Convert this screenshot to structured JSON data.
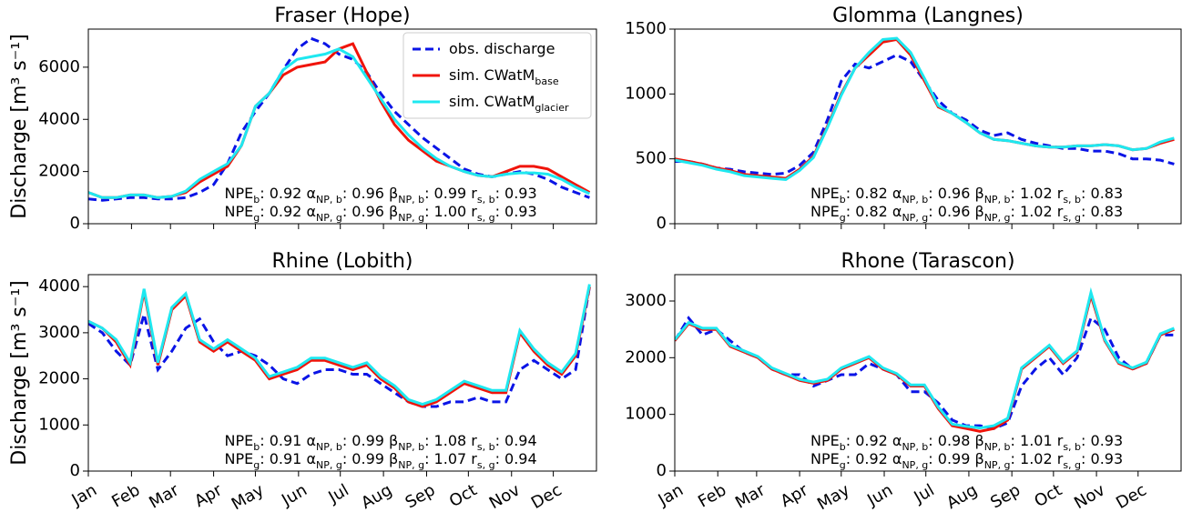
{
  "chart_data": [
    {
      "type": "line",
      "title": "Fraser (Hope)",
      "ylabel": "Discharge [m³ s⁻¹]",
      "x": [
        0,
        10,
        20,
        30,
        40,
        50,
        60,
        70,
        80,
        90,
        100,
        110,
        120,
        130,
        140,
        150,
        160,
        170,
        180,
        190,
        200,
        210,
        220,
        230,
        240,
        250,
        260,
        270,
        280,
        290,
        300,
        310,
        320,
        330,
        340,
        350,
        360
      ],
      "xlim": [
        0,
        365
      ],
      "xticks": [
        0,
        31,
        59,
        90,
        120,
        151,
        181,
        212,
        243,
        273,
        304,
        334
      ],
      "ylim": [
        0,
        7460
      ],
      "yticks": [
        0,
        2000,
        4000,
        6000
      ],
      "legend": "upper right",
      "series": [
        {
          "name": "obs. discharge",
          "color": "#0a14e6",
          "linestyle": "dashed",
          "values": [
            950,
            900,
            950,
            1000,
            1000,
            950,
            950,
            1000,
            1200,
            1500,
            2300,
            3500,
            4300,
            5000,
            5900,
            6700,
            7100,
            6900,
            6500,
            6300,
            5800,
            5000,
            4300,
            3800,
            3300,
            2900,
            2500,
            2100,
            1900,
            1800,
            1900,
            2000,
            1900,
            1700,
            1400,
            1200,
            1000
          ]
        },
        {
          "name": "sim. CWatM",
          "name_sub": "base",
          "color": "#f0140a",
          "linestyle": "solid",
          "values": [
            1200,
            1000,
            1000,
            1100,
            1100,
            1000,
            1050,
            1200,
            1600,
            1900,
            2200,
            3000,
            4500,
            5000,
            5700,
            6000,
            6100,
            6200,
            6700,
            6900,
            5800,
            4700,
            3800,
            3200,
            2800,
            2400,
            2200,
            2000,
            1850,
            1800,
            2000,
            2200,
            2200,
            2100,
            1800,
            1500,
            1200
          ]
        },
        {
          "name": "sim. CWatM",
          "name_sub": "glacier",
          "color": "#1ee8f0",
          "linestyle": "solid",
          "values": [
            1200,
            1000,
            1000,
            1100,
            1100,
            1000,
            1050,
            1250,
            1700,
            2000,
            2300,
            3000,
            4500,
            5000,
            5900,
            6300,
            6400,
            6500,
            6700,
            6400,
            5600,
            4800,
            4000,
            3400,
            2900,
            2500,
            2200,
            2000,
            1850,
            1800,
            1900,
            1950,
            1950,
            1900,
            1700,
            1400,
            1150
          ]
        }
      ],
      "annotations": [
        [
          {
            "base": "NPE",
            "sub": "b",
            "value": ": 0.92 "
          },
          {
            "base": "α",
            "sub": "NP, b",
            "value": ": 0.96 "
          },
          {
            "base": "β",
            "sub": "NP, b",
            "value": ": 0.99 "
          },
          {
            "base": "r",
            "sub": "s, b",
            "value": ": 0.93"
          }
        ],
        [
          {
            "base": "NPE",
            "sub": "g",
            "value": ": 0.92 "
          },
          {
            "base": "α",
            "sub": "NP, g",
            "value": ": 0.96 "
          },
          {
            "base": "β",
            "sub": "NP, g",
            "value": ": 1.00 "
          },
          {
            "base": "r",
            "sub": "s, g",
            "value": ": 0.93"
          }
        ]
      ]
    },
    {
      "type": "line",
      "title": "Glomma (Langnes)",
      "x": [
        0,
        10,
        20,
        30,
        40,
        50,
        60,
        70,
        80,
        90,
        100,
        110,
        120,
        130,
        140,
        150,
        160,
        170,
        180,
        190,
        200,
        210,
        220,
        230,
        240,
        250,
        260,
        270,
        280,
        290,
        300,
        310,
        320,
        330,
        340,
        350,
        360
      ],
      "xlim": [
        0,
        365
      ],
      "xticks": [
        0,
        31,
        59,
        90,
        120,
        151,
        181,
        212,
        243,
        273,
        304,
        334
      ],
      "ylim": [
        0,
        1500
      ],
      "yticks": [
        0,
        500,
        1000,
        1500
      ],
      "series": [
        {
          "name": "obs. discharge",
          "color": "#0a14e6",
          "linestyle": "dashed",
          "values": [
            480,
            480,
            460,
            430,
            420,
            400,
            390,
            380,
            390,
            450,
            550,
            800,
            1100,
            1230,
            1200,
            1250,
            1300,
            1250,
            1100,
            950,
            850,
            800,
            720,
            680,
            700,
            650,
            620,
            600,
            580,
            580,
            560,
            560,
            540,
            500,
            500,
            490,
            460
          ]
        },
        {
          "name": "sim. CWatM",
          "name_sub": "base",
          "color": "#f0140a",
          "linestyle": "solid",
          "values": [
            500,
            480,
            460,
            430,
            410,
            380,
            370,
            360,
            350,
            420,
            520,
            750,
            1000,
            1200,
            1300,
            1400,
            1420,
            1300,
            1100,
            900,
            850,
            780,
            700,
            650,
            640,
            620,
            600,
            590,
            590,
            600,
            600,
            610,
            600,
            570,
            580,
            620,
            650
          ]
        },
        {
          "name": "sim. CWatM",
          "name_sub": "glacier",
          "color": "#1ee8f0",
          "linestyle": "solid",
          "values": [
            490,
            470,
            450,
            420,
            400,
            370,
            360,
            350,
            340,
            410,
            510,
            740,
            990,
            1200,
            1320,
            1420,
            1430,
            1320,
            1120,
            910,
            850,
            780,
            700,
            650,
            640,
            620,
            600,
            590,
            590,
            600,
            600,
            610,
            600,
            570,
            580,
            630,
            660
          ]
        }
      ],
      "annotations": [
        [
          {
            "base": "NPE",
            "sub": "b",
            "value": ": 0.82 "
          },
          {
            "base": "α",
            "sub": "NP, b",
            "value": ": 0.96 "
          },
          {
            "base": "β",
            "sub": "NP, b",
            "value": ": 1.02 "
          },
          {
            "base": "r",
            "sub": "s, b",
            "value": ": 0.83"
          }
        ],
        [
          {
            "base": "NPE",
            "sub": "g",
            "value": ": 0.82 "
          },
          {
            "base": "α",
            "sub": "NP, g",
            "value": ": 0.96 "
          },
          {
            "base": "β",
            "sub": "NP, g",
            "value": ": 1.02 "
          },
          {
            "base": "r",
            "sub": "s, g",
            "value": ": 0.83"
          }
        ]
      ]
    },
    {
      "type": "line",
      "title": "Rhine (Lobith)",
      "ylabel": "Discharge [m³ s⁻¹]",
      "x": [
        0,
        10,
        20,
        30,
        40,
        50,
        60,
        70,
        80,
        90,
        100,
        110,
        120,
        130,
        140,
        150,
        160,
        170,
        180,
        190,
        200,
        210,
        220,
        230,
        240,
        250,
        260,
        270,
        280,
        290,
        300,
        310,
        320,
        330,
        340,
        350,
        360
      ],
      "xlim": [
        0,
        365
      ],
      "xticks": [
        {
          "value": 0,
          "label": "Jan"
        },
        {
          "value": 31,
          "label": "Feb"
        },
        {
          "value": 59,
          "label": "Mar"
        },
        {
          "value": 90,
          "label": "Apr"
        },
        {
          "value": 120,
          "label": "May"
        },
        {
          "value": 151,
          "label": "Jun"
        },
        {
          "value": 181,
          "label": "Jul"
        },
        {
          "value": 212,
          "label": "Aug"
        },
        {
          "value": 243,
          "label": "Sep"
        },
        {
          "value": 273,
          "label": "Oct"
        },
        {
          "value": 304,
          "label": "Nov"
        },
        {
          "value": 334,
          "label": "Dec"
        }
      ],
      "ylim": [
        0,
        4260
      ],
      "yticks": [
        0,
        1000,
        2000,
        3000,
        4000
      ],
      "series": [
        {
          "name": "obs. discharge",
          "color": "#0a14e6",
          "linestyle": "dashed",
          "values": [
            3200,
            3000,
            2600,
            2300,
            3400,
            2200,
            2600,
            3100,
            3300,
            2800,
            2500,
            2600,
            2500,
            2300,
            2000,
            1900,
            2100,
            2200,
            2200,
            2100,
            2100,
            1900,
            1700,
            1500,
            1400,
            1400,
            1500,
            1500,
            1600,
            1500,
            1500,
            2200,
            2400,
            2200,
            2000,
            2200,
            4000
          ]
        },
        {
          "name": "sim. CWatM",
          "name_sub": "base",
          "color": "#f0140a",
          "linestyle": "solid",
          "values": [
            3250,
            3100,
            2800,
            2300,
            3900,
            2300,
            3500,
            3800,
            2800,
            2600,
            2800,
            2600,
            2400,
            2000,
            2100,
            2200,
            2400,
            2400,
            2300,
            2200,
            2300,
            2000,
            1800,
            1500,
            1400,
            1500,
            1700,
            1900,
            1800,
            1700,
            1700,
            3000,
            2600,
            2300,
            2100,
            2500,
            4000
          ]
        },
        {
          "name": "sim. CWatM",
          "name_sub": "glacier",
          "color": "#1ee8f0",
          "linestyle": "solid",
          "values": [
            3250,
            3100,
            2850,
            2350,
            3950,
            2350,
            3550,
            3850,
            2850,
            2650,
            2850,
            2650,
            2450,
            2050,
            2150,
            2250,
            2450,
            2450,
            2350,
            2250,
            2350,
            2050,
            1850,
            1550,
            1450,
            1550,
            1750,
            1950,
            1850,
            1750,
            1750,
            3050,
            2650,
            2350,
            2150,
            2550,
            4050
          ]
        }
      ],
      "annotations": [
        [
          {
            "base": "NPE",
            "sub": "b",
            "value": ": 0.91 "
          },
          {
            "base": "α",
            "sub": "NP, b",
            "value": ": 0.99 "
          },
          {
            "base": "β",
            "sub": "NP, b",
            "value": ": 1.08 "
          },
          {
            "base": "r",
            "sub": "s, b",
            "value": ": 0.94"
          }
        ],
        [
          {
            "base": "NPE",
            "sub": "g",
            "value": ": 0.91 "
          },
          {
            "base": "α",
            "sub": "NP, g",
            "value": ": 0.99 "
          },
          {
            "base": "β",
            "sub": "NP, g",
            "value": ": 1.07 "
          },
          {
            "base": "r",
            "sub": "s, g",
            "value": ": 0.94"
          }
        ]
      ]
    },
    {
      "type": "line",
      "title": "Rhone (Tarascon)",
      "x": [
        0,
        10,
        20,
        30,
        40,
        50,
        60,
        70,
        80,
        90,
        100,
        110,
        120,
        130,
        140,
        150,
        160,
        170,
        180,
        190,
        200,
        210,
        220,
        230,
        240,
        250,
        260,
        270,
        280,
        290,
        300,
        310,
        320,
        330,
        340,
        350,
        360
      ],
      "xlim": [
        0,
        365
      ],
      "xticks": [
        {
          "value": 0,
          "label": "Jan"
        },
        {
          "value": 31,
          "label": "Feb"
        },
        {
          "value": 59,
          "label": "Mar"
        },
        {
          "value": 90,
          "label": "Apr"
        },
        {
          "value": 120,
          "label": "May"
        },
        {
          "value": 151,
          "label": "Jun"
        },
        {
          "value": 181,
          "label": "Jul"
        },
        {
          "value": 212,
          "label": "Aug"
        },
        {
          "value": 243,
          "label": "Sep"
        },
        {
          "value": 273,
          "label": "Oct"
        },
        {
          "value": 304,
          "label": "Nov"
        },
        {
          "value": 334,
          "label": "Dec"
        }
      ],
      "ylim": [
        0,
        3465
      ],
      "yticks": [
        0,
        1000,
        2000,
        3000
      ],
      "series": [
        {
          "name": "obs. discharge",
          "color": "#0a14e6",
          "linestyle": "dashed",
          "values": [
            2300,
            2700,
            2400,
            2500,
            2300,
            2100,
            2000,
            1800,
            1700,
            1700,
            1500,
            1600,
            1700,
            1700,
            1900,
            1800,
            1700,
            1400,
            1400,
            1200,
            900,
            800,
            800,
            750,
            850,
            1500,
            1800,
            2000,
            1700,
            2000,
            2700,
            2500,
            2000,
            1800,
            1900,
            2400,
            2400
          ]
        },
        {
          "name": "sim. CWatM",
          "name_sub": "base",
          "color": "#f0140a",
          "linestyle": "solid",
          "values": [
            2300,
            2600,
            2500,
            2500,
            2200,
            2100,
            2000,
            1800,
            1700,
            1600,
            1550,
            1600,
            1800,
            1900,
            2000,
            1800,
            1700,
            1500,
            1500,
            1100,
            800,
            750,
            700,
            750,
            900,
            1800,
            2000,
            2200,
            1900,
            2100,
            3100,
            2300,
            1900,
            1800,
            1900,
            2400,
            2500
          ]
        },
        {
          "name": "sim. CWatM",
          "name_sub": "glacier",
          "color": "#1ee8f0",
          "linestyle": "solid",
          "values": [
            2320,
            2620,
            2520,
            2520,
            2220,
            2120,
            2020,
            1820,
            1720,
            1620,
            1570,
            1620,
            1820,
            1920,
            2020,
            1820,
            1720,
            1520,
            1520,
            1130,
            830,
            790,
            760,
            800,
            930,
            1820,
            2020,
            2220,
            1920,
            2120,
            3150,
            2320,
            1920,
            1820,
            1920,
            2420,
            2520
          ]
        }
      ],
      "annotations": [
        [
          {
            "base": "NPE",
            "sub": "b",
            "value": ": 0.92 "
          },
          {
            "base": "α",
            "sub": "NP, b",
            "value": ": 0.98 "
          },
          {
            "base": "β",
            "sub": "NP, b",
            "value": ": 1.01 "
          },
          {
            "base": "r",
            "sub": "s, b",
            "value": ": 0.93"
          }
        ],
        [
          {
            "base": "NPE",
            "sub": "g",
            "value": ": 0.92 "
          },
          {
            "base": "α",
            "sub": "NP, g",
            "value": ": 0.99 "
          },
          {
            "base": "β",
            "sub": "NP, g",
            "value": ": 1.02 "
          },
          {
            "base": "r",
            "sub": "s, g",
            "value": ": 0.93"
          }
        ]
      ]
    }
  ]
}
